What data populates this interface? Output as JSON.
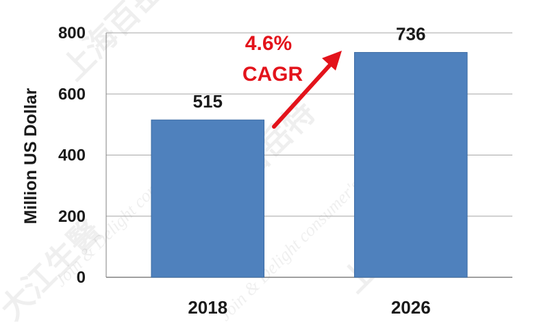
{
  "chart_data": {
    "type": "bar",
    "categories": [
      "2018",
      "2026"
    ],
    "values": [
      515,
      736
    ],
    "data_labels": [
      "515",
      "736"
    ],
    "ylabel": "Million US Dollar",
    "ylim": [
      0,
      800
    ],
    "yticks": [
      0,
      200,
      400,
      600,
      800
    ],
    "ytick_labels": [
      "0",
      "200",
      "400",
      "600",
      "800"
    ],
    "grid": true,
    "bar_color": "#4f81bd",
    "annotation": {
      "line1": "4.6%",
      "line2": "CAGR",
      "color": "#e3131b"
    }
  },
  "watermark": {
    "cn_text": "上海百岳特",
    "cn_text_alt": "大江生醫",
    "en_text": "Join & Delight consumer's life"
  }
}
